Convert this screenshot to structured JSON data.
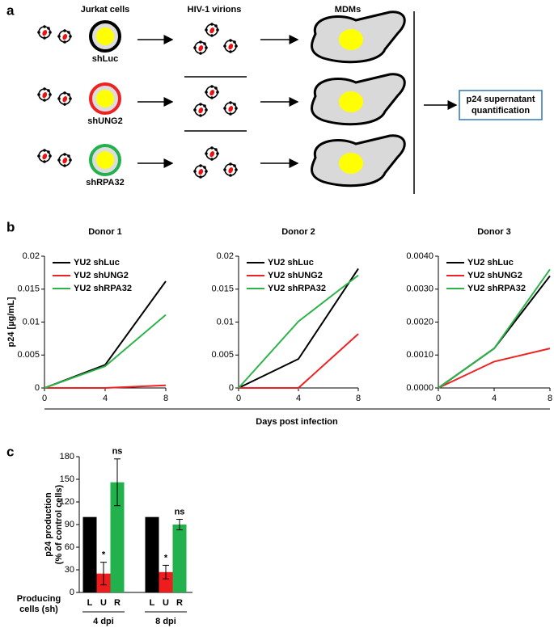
{
  "panel_labels": [
    "a",
    "b",
    "c"
  ],
  "diagram": {
    "columns": [
      "Jurkat cells",
      "HIV-1 virions",
      "MDMs"
    ],
    "rows": [
      "shLuc",
      "shUNG2",
      "shRPA32"
    ],
    "ring_colors": [
      "#000000",
      "#ee2222",
      "#22b14c"
    ],
    "result": [
      "p24 supernatant",
      "quantification"
    ]
  },
  "shared_xlabel": "Days post infection",
  "chart_data": [
    {
      "type": "line",
      "title": "Donor 1",
      "ylabel": "p24 [µg/mL]",
      "x": [
        0,
        4,
        8
      ],
      "xlim": [
        0,
        8
      ],
      "xticks": [
        0,
        4,
        8
      ],
      "ylim": [
        0,
        0.02
      ],
      "yticks": [
        0,
        0.005,
        0.01,
        0.015,
        0.02
      ],
      "series": [
        {
          "name": "YU2 shLuc",
          "color": "#000000",
          "values": [
            0,
            0.0035,
            0.0162
          ]
        },
        {
          "name": "YU2 shUNG2",
          "color": "#ee2222",
          "values": [
            0,
            0,
            0.0004
          ]
        },
        {
          "name": "YU2 shRPA32",
          "color": "#2db34a",
          "values": [
            0,
            0.0033,
            0.0111
          ]
        }
      ]
    },
    {
      "type": "line",
      "title": "Donor 2",
      "x": [
        0,
        4,
        8
      ],
      "xlim": [
        0,
        8
      ],
      "xticks": [
        0,
        4,
        8
      ],
      "ylim": [
        0,
        0.02
      ],
      "yticks": [
        0,
        0.005,
        0.01,
        0.015,
        0.02
      ],
      "series": [
        {
          "name": "YU2 shLuc",
          "color": "#000000",
          "values": [
            0,
            0.0044,
            0.0181
          ]
        },
        {
          "name": "YU2 shUNG2",
          "color": "#ee2222",
          "values": [
            0,
            0,
            0.0082
          ]
        },
        {
          "name": "YU2 shRPA32",
          "color": "#2db34a",
          "values": [
            0,
            0.0101,
            0.0171
          ]
        }
      ]
    },
    {
      "type": "line",
      "title": "Donor 3",
      "x": [
        0,
        4,
        8
      ],
      "xlim": [
        0,
        8
      ],
      "xticks": [
        0,
        4,
        8
      ],
      "ylim": [
        0,
        0.004
      ],
      "yticks": [
        {
          "value": 0,
          "label": "0.0000"
        },
        {
          "value": 0.001,
          "label": "0.0010"
        },
        {
          "value": 0.002,
          "label": "0.0020"
        },
        {
          "value": 0.003,
          "label": "0.0030"
        },
        {
          "value": 0.004,
          "label": "0.0040"
        }
      ],
      "series": [
        {
          "name": "YU2 shLuc",
          "color": "#000000",
          "values": [
            0,
            0.0012,
            0.0034
          ]
        },
        {
          "name": "YU2 shUNG2",
          "color": "#ee2222",
          "values": [
            0,
            0.0008,
            0.0012
          ]
        },
        {
          "name": "YU2 shRPA32",
          "color": "#2db34a",
          "values": [
            0,
            0.0012,
            0.0036
          ]
        }
      ]
    },
    {
      "type": "bar",
      "ylabel": [
        "p24 production",
        "(% of control cells)"
      ],
      "xlabel": [
        "Producing",
        "cells (sh)"
      ],
      "groups": [
        "4 dpi",
        "8 dpi"
      ],
      "ylim": [
        0,
        180
      ],
      "yticks": [
        0,
        30,
        60,
        90,
        120,
        150,
        180
      ],
      "series": [
        {
          "name": "L",
          "color": "#000000",
          "values": [
            100,
            100
          ]
        },
        {
          "name": "U",
          "color": "#ee1c1c",
          "values": [
            25,
            27
          ],
          "errors": [
            15,
            9
          ],
          "significance": [
            "*",
            "*"
          ]
        },
        {
          "name": "R",
          "color": "#22b14c",
          "values": [
            146,
            90
          ],
          "errors": [
            31,
            7
          ],
          "significance": [
            "ns",
            "ns"
          ]
        }
      ]
    }
  ]
}
